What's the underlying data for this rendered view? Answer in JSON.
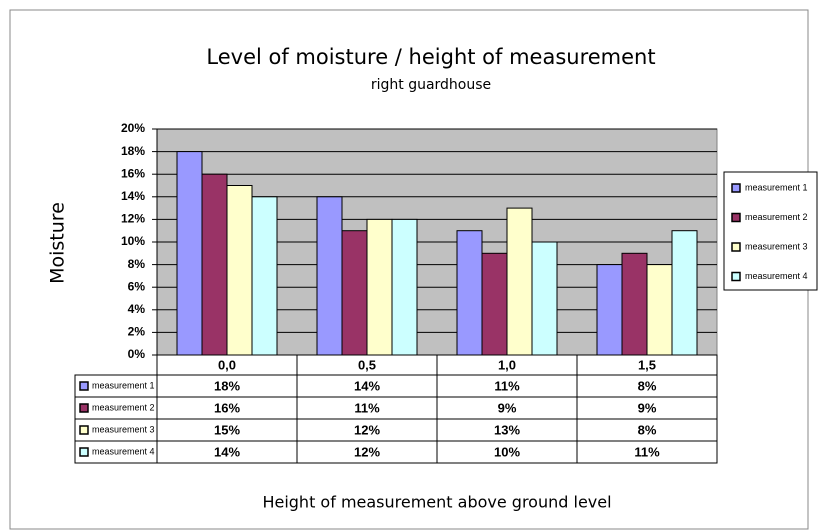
{
  "chart_data": {
    "type": "bar",
    "title": "Level of moisture / height of measurement",
    "subtitle": "right guardhouse",
    "x_label": "Height of measurement above ground level",
    "y_label": "Moisture",
    "categories": [
      "0,0",
      "0,5",
      "1,0",
      "1,5"
    ],
    "series": [
      {
        "name": "measurement 1",
        "color": "#9999ff",
        "values": [
          18,
          14,
          11,
          8
        ],
        "value_labels": [
          "18%",
          "14%",
          "11%",
          "8%"
        ]
      },
      {
        "name": "measurement 2",
        "color": "#993366",
        "values": [
          16,
          11,
          9,
          9
        ],
        "value_labels": [
          "16%",
          "11%",
          "9%",
          "9%"
        ]
      },
      {
        "name": "measurement 3",
        "color": "#ffffcc",
        "values": [
          15,
          12,
          13,
          8
        ],
        "value_labels": [
          "15%",
          "12%",
          "13%",
          "8%"
        ]
      },
      {
        "name": "measurement 4",
        "color": "#ccffff",
        "values": [
          14,
          12,
          10,
          11
        ],
        "value_labels": [
          "14%",
          "12%",
          "10%",
          "11%"
        ]
      }
    ],
    "ylim": [
      0,
      20
    ],
    "yticks": [
      {
        "value": 0,
        "label": "0%"
      },
      {
        "value": 2,
        "label": "2%"
      },
      {
        "value": 4,
        "label": "4%"
      },
      {
        "value": 6,
        "label": "6%"
      },
      {
        "value": 8,
        "label": "8%"
      },
      {
        "value": 10,
        "label": "10%"
      },
      {
        "value": 12,
        "label": "12%"
      },
      {
        "value": 14,
        "label": "14%"
      },
      {
        "value": 16,
        "label": "16%"
      },
      {
        "value": 18,
        "label": "18%"
      },
      {
        "value": 20,
        "label": "20%"
      }
    ],
    "grid": true,
    "legend": "right",
    "plot_background": "#c0c0c0"
  }
}
